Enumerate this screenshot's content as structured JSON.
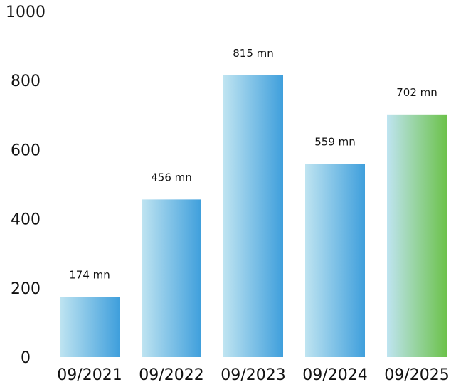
{
  "chart_data": {
    "type": "bar",
    "title": "",
    "xlabel": "",
    "ylabel": "",
    "categories": [
      "09/2021",
      "09/2022",
      "09/2023",
      "09/2024",
      "09/2025"
    ],
    "values": [
      174,
      456,
      815,
      559,
      702
    ],
    "data_labels": [
      "174 mn",
      "456 mn",
      "815 mn",
      "559 mn",
      "702 mn"
    ],
    "ylim": [
      0,
      1000
    ],
    "yticks": [
      0,
      200,
      400,
      600,
      800,
      1000
    ],
    "ytick_labels": [
      "0",
      "200",
      "400",
      "600",
      "800",
      "1000"
    ],
    "grid": false,
    "legend": "none",
    "bar_gradients": [
      {
        "from": "#bfe4f1",
        "to": "#3f9fdc"
      },
      {
        "from": "#bfe4f1",
        "to": "#3f9fdc"
      },
      {
        "from": "#bfe4f1",
        "to": "#3f9fdc"
      },
      {
        "from": "#bfe4f1",
        "to": "#3f9fdc"
      },
      {
        "from": "#bfe4f1",
        "to": "#6cc24a"
      }
    ]
  }
}
